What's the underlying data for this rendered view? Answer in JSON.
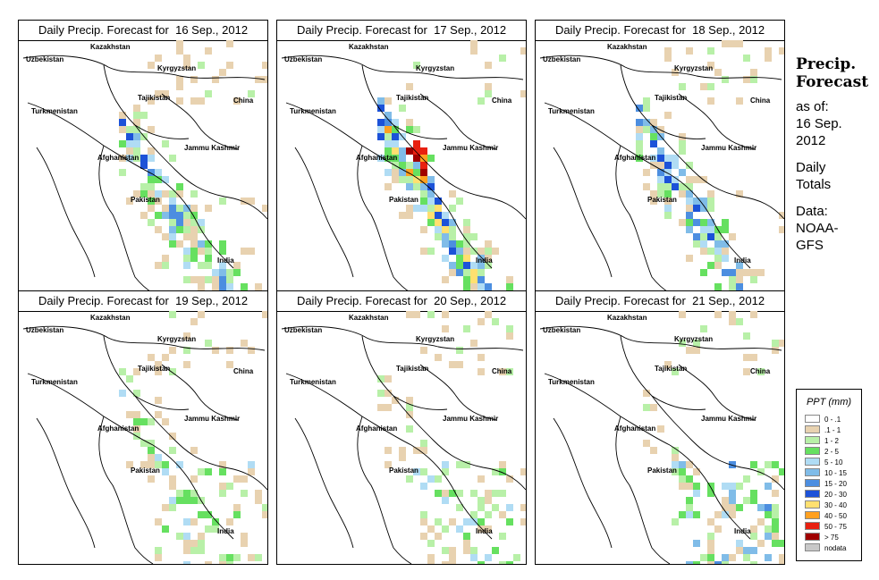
{
  "panels": [
    {
      "title": "Daily Precip. Forecast for  16 Sep., 2012",
      "intensity": 0.8
    },
    {
      "title": "Daily Precip. Forecast for  17 Sep., 2012",
      "intensity": 1.0
    },
    {
      "title": "Daily Precip. Forecast for  18 Sep., 2012",
      "intensity": 0.85
    },
    {
      "title": "Daily Precip. Forecast for  19 Sep., 2012",
      "intensity": 0.45
    },
    {
      "title": "Daily Precip. Forecast for  20 Sep., 2012",
      "intensity": 0.35
    },
    {
      "title": "Daily Precip. Forecast for  21 Sep., 2012",
      "intensity": 0.15
    }
  ],
  "places": [
    "Kazakhstan",
    "Uzbekistan",
    "Kyrgyzstan",
    "Tajikistan",
    "China",
    "Turkmenistan",
    "Afghanistan",
    "Jammu Kashmir",
    "Pakistan",
    "India"
  ],
  "side": {
    "title1": "Precip.",
    "title2": "Forecast",
    "asof": "as of:",
    "date1": "16 Sep.",
    "date2": "2012",
    "daily": "Daily",
    "totals": "Totals",
    "data": "Data:",
    "noaa": "NOAA-",
    "gfs": "GFS"
  },
  "legend": {
    "title": "PPT (mm)",
    "items": [
      {
        "label": "0 - .1",
        "color": "#ffffff"
      },
      {
        "label": ".1 - 1",
        "color": "#e8d2b0"
      },
      {
        "label": "1 - 2",
        "color": "#b8f0a8"
      },
      {
        "label": "2 - 5",
        "color": "#66e060"
      },
      {
        "label": "5 - 10",
        "color": "#b0dcf4"
      },
      {
        "label": "10 - 15",
        "color": "#80bce8"
      },
      {
        "label": "15 - 20",
        "color": "#4c8ee0"
      },
      {
        "label": "20 - 30",
        "color": "#1c52d8"
      },
      {
        "label": "30 - 40",
        "color": "#ffe070"
      },
      {
        "label": "40 - 50",
        "color": "#ffa020"
      },
      {
        "label": "50 - 75",
        "color": "#e82010"
      },
      {
        "label": "> 75",
        "color": "#a00000"
      },
      {
        "label": "nodata",
        "color": "#c8c8c8"
      }
    ]
  }
}
